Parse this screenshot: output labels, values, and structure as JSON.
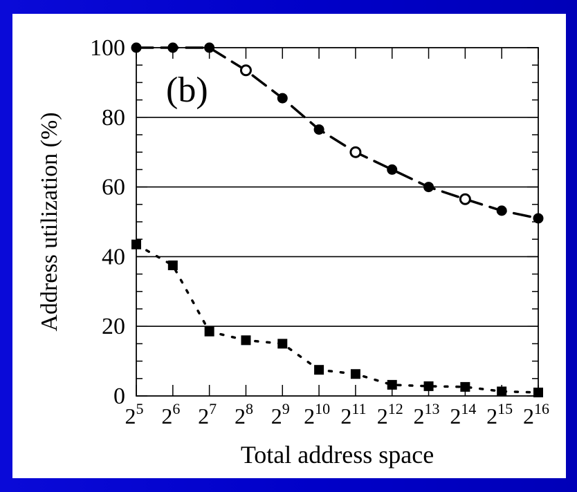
{
  "chart_data": {
    "type": "line",
    "panel_label": "(b)",
    "xlabel": "Total address space",
    "ylabel": "Address utilization (%)",
    "x_tick_labels": [
      {
        "base": "2",
        "exp": "5"
      },
      {
        "base": "2",
        "exp": "6"
      },
      {
        "base": "2",
        "exp": "7"
      },
      {
        "base": "2",
        "exp": "8"
      },
      {
        "base": "2",
        "exp": "9"
      },
      {
        "base": "2",
        "exp": "10"
      },
      {
        "base": "2",
        "exp": "11"
      },
      {
        "base": "2",
        "exp": "12"
      },
      {
        "base": "2",
        "exp": "13"
      },
      {
        "base": "2",
        "exp": "14"
      },
      {
        "base": "2",
        "exp": "15"
      },
      {
        "base": "2",
        "exp": "16"
      }
    ],
    "x_exponents": [
      5,
      6,
      7,
      8,
      9,
      10,
      11,
      12,
      13,
      14,
      15,
      16
    ],
    "y_ticks": [
      0,
      20,
      40,
      60,
      80,
      100
    ],
    "ylim": [
      0,
      100
    ],
    "xlim_exponent": [
      5,
      16
    ],
    "gridlines": "horizontal at 20, 40, 60, 80",
    "series": [
      {
        "style": "dashed",
        "marker": "circle",
        "values": [
          100,
          100,
          100,
          93.5,
          85.5,
          76.5,
          70,
          65,
          60,
          56.5,
          53.2,
          51
        ]
      },
      {
        "style": "dotted",
        "marker": "square",
        "values": [
          43.5,
          37.5,
          18.5,
          16,
          15,
          7.5,
          6.3,
          3.2,
          2.8,
          2.6,
          1.3,
          1
        ]
      }
    ]
  }
}
